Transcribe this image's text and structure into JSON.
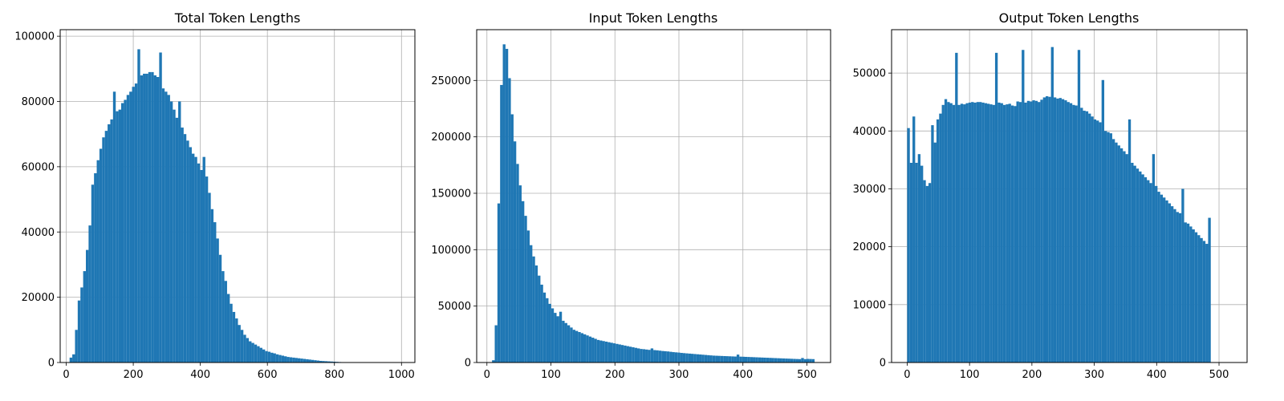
{
  "chart_data": [
    {
      "type": "bar",
      "title": "Total Token Lengths",
      "xlabel": "",
      "ylabel": "",
      "bar_color": "#1f77b4",
      "grid": true,
      "xlim": [
        -18,
        1040
      ],
      "ylim": [
        0,
        102000
      ],
      "xticks": [
        0,
        200,
        400,
        600,
        800,
        1000
      ],
      "yticks": [
        0,
        20000,
        40000,
        60000,
        80000,
        100000
      ],
      "bins": {
        "start": 10,
        "width": 8.1,
        "counts": [
          1500,
          2500,
          10000,
          19000,
          23000,
          28000,
          34500,
          42000,
          54500,
          58000,
          62000,
          65500,
          69000,
          71000,
          73000,
          74500,
          83000,
          77000,
          77500,
          79500,
          80500,
          82000,
          83000,
          84500,
          85500,
          96000,
          88000,
          88500,
          88500,
          89000,
          89000,
          88000,
          87500,
          95000,
          84000,
          83000,
          82000,
          80000,
          77500,
          75000,
          80000,
          72000,
          70000,
          68000,
          66000,
          64000,
          63000,
          61000,
          59000,
          63000,
          57000,
          52000,
          47000,
          43000,
          38000,
          33000,
          28000,
          25000,
          21000,
          18000,
          15500,
          13500,
          11500,
          10000,
          8500,
          7500,
          6500,
          6000,
          5500,
          5000,
          4500,
          4000,
          3500,
          3300,
          3000,
          2800,
          2500,
          2300,
          2100,
          1900,
          1700,
          1600,
          1500,
          1400,
          1300,
          1200,
          1100,
          1000,
          900,
          800,
          700,
          600,
          500,
          450,
          400,
          350,
          300,
          250,
          200,
          150,
          100,
          80,
          60,
          40,
          30,
          20,
          15,
          10,
          8,
          5,
          3,
          2,
          1,
          1,
          1,
          1,
          1,
          1,
          1,
          1,
          1,
          1,
          1,
          1
        ]
      }
    },
    {
      "type": "bar",
      "title": "Input Token Lengths",
      "xlabel": "",
      "ylabel": "",
      "bar_color": "#1f77b4",
      "grid": true,
      "xlim": [
        -16,
        537
      ],
      "ylim": [
        0,
        295000
      ],
      "xticks": [
        0,
        100,
        200,
        300,
        400,
        500
      ],
      "yticks": [
        0,
        50000,
        100000,
        150000,
        200000,
        250000
      ],
      "bins": {
        "start": 8,
        "width": 4.2,
        "counts": [
          2000,
          33000,
          141000,
          246000,
          282000,
          278000,
          252000,
          220000,
          196000,
          176000,
          157000,
          143000,
          130000,
          117000,
          104000,
          94000,
          86000,
          77000,
          69000,
          62000,
          57000,
          52000,
          48000,
          44000,
          41000,
          45000,
          37000,
          35000,
          33000,
          31000,
          29000,
          28000,
          27000,
          26000,
          25000,
          24000,
          23000,
          22000,
          21000,
          20000,
          19500,
          19000,
          18500,
          18000,
          17500,
          17000,
          16500,
          16000,
          15500,
          15000,
          14500,
          14000,
          13500,
          13000,
          12500,
          12000,
          11800,
          11500,
          11200,
          12500,
          11000,
          10800,
          10500,
          10200,
          10000,
          9800,
          9500,
          9200,
          9000,
          8800,
          8500,
          8300,
          8100,
          7900,
          7700,
          7500,
          7300,
          7100,
          6900,
          6700,
          6500,
          6300,
          6100,
          6000,
          5900,
          5800,
          5700,
          5600,
          5500,
          5400,
          5300,
          7000,
          5200,
          5100,
          5000,
          4900,
          4800,
          4700,
          4600,
          4500,
          4400,
          4300,
          4200,
          4100,
          4000,
          3900,
          3800,
          3700,
          3600,
          3500,
          3400,
          3300,
          3200,
          3100,
          3000,
          4000,
          3000,
          3200,
          3100,
          3000
        ]
      }
    },
    {
      "type": "bar",
      "title": "Output Token Lengths",
      "xlabel": "",
      "ylabel": "",
      "bar_color": "#1f77b4",
      "grid": true,
      "xlim": [
        -25,
        545
      ],
      "ylim": [
        0,
        57500
      ],
      "xticks": [
        0,
        100,
        200,
        300,
        400,
        500
      ],
      "yticks": [
        0,
        10000,
        20000,
        30000,
        40000,
        50000
      ],
      "bins": {
        "start": 0,
        "width": 4.27,
        "counts": [
          40500,
          34500,
          42500,
          34500,
          36000,
          34000,
          31500,
          30500,
          31000,
          41000,
          38000,
          42000,
          43000,
          44500,
          45500,
          45000,
          44800,
          44500,
          53500,
          44500,
          44700,
          44600,
          44800,
          44900,
          45000,
          44900,
          45000,
          45000,
          44900,
          44800,
          44700,
          44600,
          44500,
          53500,
          44900,
          44800,
          44500,
          44600,
          44700,
          44400,
          44300,
          45100,
          45000,
          54000,
          44900,
          45200,
          45100,
          45300,
          45200,
          45000,
          45400,
          45800,
          46000,
          45900,
          54500,
          45800,
          45600,
          45700,
          45500,
          45300,
          45000,
          44800,
          44500,
          44400,
          54000,
          44000,
          43500,
          43400,
          43000,
          42500,
          42000,
          41800,
          41500,
          48800,
          40000,
          39800,
          39600,
          38600,
          38000,
          37500,
          37000,
          36500,
          36000,
          42000,
          34500,
          34000,
          33500,
          33000,
          32500,
          32000,
          31500,
          31000,
          36000,
          30500,
          29500,
          29000,
          28500,
          28000,
          27500,
          27000,
          26500,
          26000,
          25800,
          30000,
          24200,
          24000,
          23500,
          23000,
          22500,
          22000,
          21500,
          21000,
          20500,
          25000,
          0,
          0,
          0,
          0,
          0,
          0
        ]
      }
    }
  ]
}
